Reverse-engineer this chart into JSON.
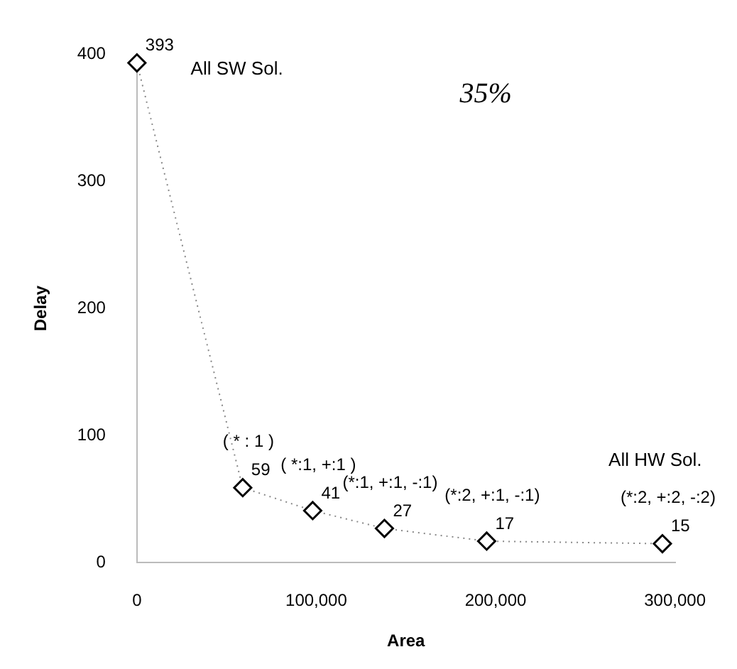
{
  "chart_data": {
    "type": "line",
    "xlabel": "Area",
    "ylabel": "Delay",
    "x": [
      0,
      59000,
      98000,
      138000,
      195000,
      293000
    ],
    "values": [
      393,
      59,
      41,
      27,
      17,
      15
    ],
    "color": "#000000",
    "marker": "diamond",
    "line_style": "dotted",
    "data_labels": true,
    "xlim": [
      0,
      300000
    ],
    "ylim": [
      0,
      400
    ],
    "xticks": [
      0,
      {
        "value": 100000,
        "label": "100,000"
      },
      {
        "value": 200000,
        "label": "200,000"
      },
      {
        "value": 300000,
        "label": "300,000"
      }
    ],
    "yticks": [
      0,
      100,
      200,
      300,
      400
    ],
    "grid": false,
    "legend": false,
    "annotations": [
      "All SW Sol.",
      "35%",
      {
        "text": "( * : 1 )",
        "x": 59000,
        "y": 59
      },
      {
        "text": "( *:1, +:1 )",
        "x": 98000,
        "y": 41
      },
      {
        "text": "(*:1, +:1, -:1)",
        "x": 138000,
        "y": 27
      },
      {
        "text": "(*:2, +:1, -:1)",
        "x": 195000,
        "y": 17
      },
      {
        "text": "(*:2, +:2, -:2)",
        "x": 293000,
        "y": 15
      },
      "All HW Sol."
    ]
  }
}
